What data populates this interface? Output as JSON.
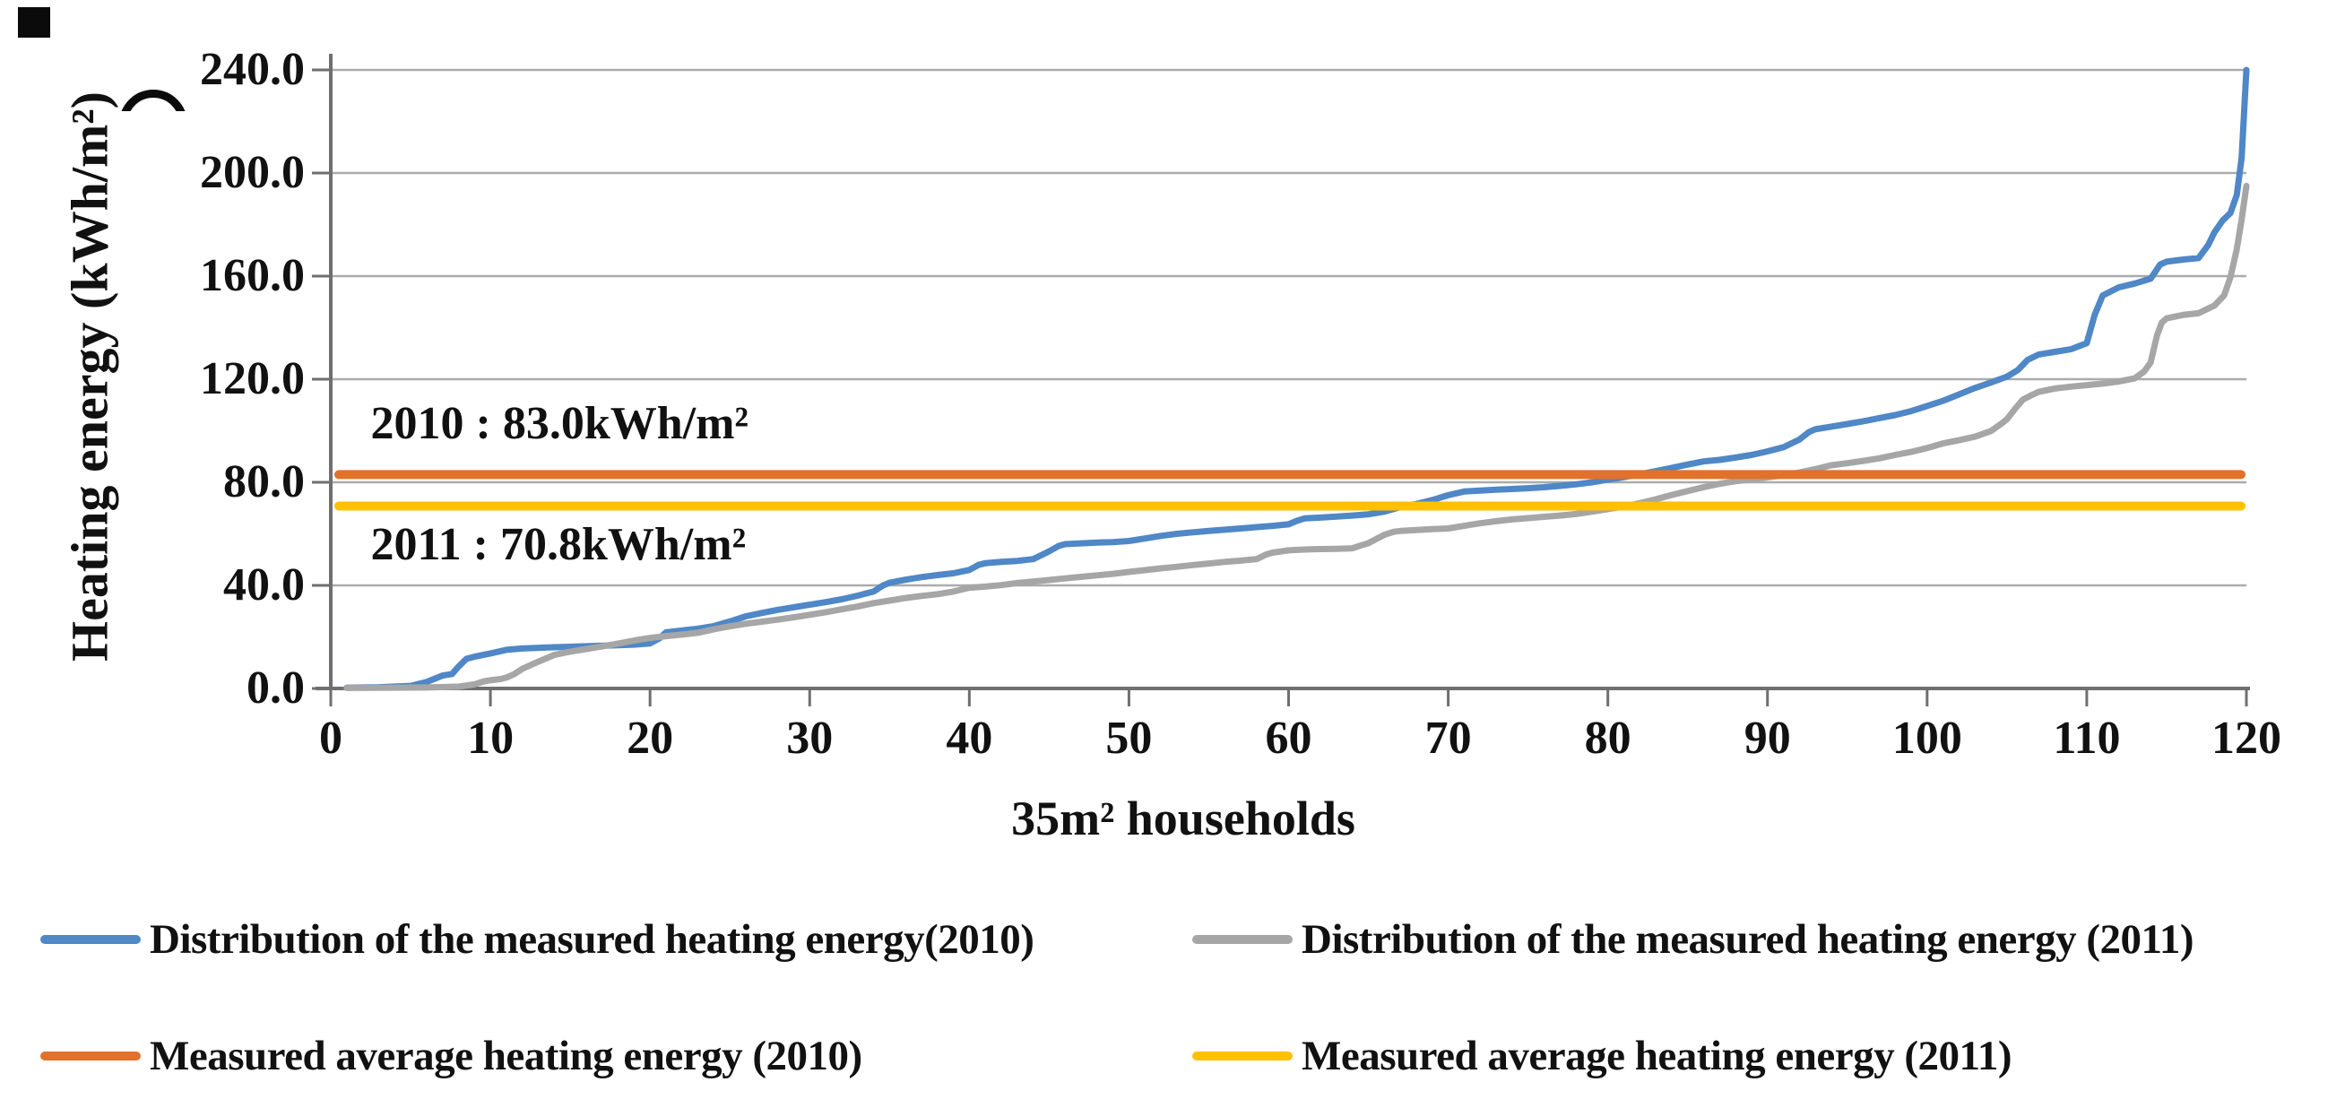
{
  "chart_data": {
    "type": "line",
    "title": "",
    "xlabel": "35m² households",
    "ylabel": "Heating energy (kWh/m²)",
    "xlim": [
      0,
      120
    ],
    "ylim": [
      0,
      240
    ],
    "grid": "horizontal gridlines every 40 units",
    "legend_position": "bottom, two rows",
    "x_ticks": [
      {
        "v": 0,
        "label": "0"
      },
      {
        "v": 10,
        "label": "10"
      },
      {
        "v": 20,
        "label": "20"
      },
      {
        "v": 30,
        "label": "30"
      },
      {
        "v": 40,
        "label": "40"
      },
      {
        "v": 50,
        "label": "50"
      },
      {
        "v": 60,
        "label": "60"
      },
      {
        "v": 70,
        "label": "70"
      },
      {
        "v": 80,
        "label": "80"
      },
      {
        "v": 90,
        "label": "90"
      },
      {
        "v": 100,
        "label": "100"
      },
      {
        "v": 110,
        "label": "110"
      },
      {
        "v": 120,
        "label": "120"
      }
    ],
    "y_ticks": [
      {
        "v": 0,
        "label": "0.0"
      },
      {
        "v": 40,
        "label": "40.0"
      },
      {
        "v": 80,
        "label": "80.0"
      },
      {
        "v": 120,
        "label": "120.0"
      },
      {
        "v": 160,
        "label": "160.0"
      },
      {
        "v": 200,
        "label": "200.0"
      },
      {
        "v": 240,
        "label": "240.0"
      }
    ],
    "annotations": [
      {
        "text": "2010 : 83.0kWh/m²",
        "x": 2.5,
        "y": 103
      },
      {
        "text": "2011 : 70.8kWh/m²",
        "x": 2.5,
        "y": 56
      }
    ],
    "series": [
      {
        "name": "Distribution of the measured heating energy(2010)",
        "color": "#4F87C7",
        "type": "line",
        "points": [
          [
            1,
            0.3
          ],
          [
            3,
            0.5
          ],
          [
            5,
            1
          ],
          [
            6,
            2.5
          ],
          [
            7,
            5
          ],
          [
            7.6,
            5.6
          ],
          [
            8,
            8.5
          ],
          [
            8.5,
            11.5
          ],
          [
            9,
            12.3
          ],
          [
            10,
            13.6
          ],
          [
            11,
            15
          ],
          [
            12,
            15.5
          ],
          [
            14,
            16
          ],
          [
            16,
            16.4
          ],
          [
            18,
            16.8
          ],
          [
            19,
            17
          ],
          [
            20,
            17.5
          ],
          [
            20.6,
            19.5
          ],
          [
            21,
            21.8
          ],
          [
            22,
            22.5
          ],
          [
            23,
            23.2
          ],
          [
            24,
            24.2
          ],
          [
            25,
            26
          ],
          [
            26,
            28
          ],
          [
            27,
            29.3
          ],
          [
            28,
            30.5
          ],
          [
            29,
            31.5
          ],
          [
            30,
            32.5
          ],
          [
            31,
            33.5
          ],
          [
            32,
            34.6
          ],
          [
            33,
            36
          ],
          [
            34,
            37.6
          ],
          [
            34.6,
            40
          ],
          [
            35,
            41
          ],
          [
            36,
            42.2
          ],
          [
            37,
            43.2
          ],
          [
            38,
            44
          ],
          [
            39,
            44.7
          ],
          [
            40,
            46
          ],
          [
            40.6,
            48
          ],
          [
            41,
            48.6
          ],
          [
            42,
            49.1
          ],
          [
            43,
            49.5
          ],
          [
            44,
            50.2
          ],
          [
            44.6,
            52
          ],
          [
            45,
            53.2
          ],
          [
            45.6,
            55.3
          ],
          [
            46,
            56
          ],
          [
            47,
            56.3
          ],
          [
            48,
            56.6
          ],
          [
            49,
            56.8
          ],
          [
            50,
            57.2
          ],
          [
            51,
            58.2
          ],
          [
            52,
            59.2
          ],
          [
            53,
            60
          ],
          [
            54,
            60.6
          ],
          [
            55,
            61.1
          ],
          [
            56,
            61.6
          ],
          [
            57,
            62.1
          ],
          [
            58,
            62.6
          ],
          [
            59,
            63.1
          ],
          [
            60,
            63.7
          ],
          [
            60.5,
            65
          ],
          [
            61,
            66
          ],
          [
            62,
            66.3
          ],
          [
            63,
            66.7
          ],
          [
            64,
            67.1
          ],
          [
            65,
            67.6
          ],
          [
            66,
            68.6
          ],
          [
            67,
            70.4
          ],
          [
            68,
            71.6
          ],
          [
            69,
            73.1
          ],
          [
            70,
            75
          ],
          [
            71,
            76.4
          ],
          [
            72,
            76.8
          ],
          [
            73,
            77.1
          ],
          [
            74,
            77.4
          ],
          [
            75,
            77.7
          ],
          [
            76,
            78.1
          ],
          [
            77,
            78.6
          ],
          [
            78,
            79.2
          ],
          [
            79,
            80
          ],
          [
            80,
            81
          ],
          [
            81,
            82
          ],
          [
            82,
            83.1
          ],
          [
            83,
            84.3
          ],
          [
            84,
            85.6
          ],
          [
            85,
            86.9
          ],
          [
            86,
            88.1
          ],
          [
            87,
            88.7
          ],
          [
            88,
            89.6
          ],
          [
            89,
            90.6
          ],
          [
            90,
            92
          ],
          [
            91,
            93.6
          ],
          [
            92,
            96.6
          ],
          [
            92.6,
            99.5
          ],
          [
            93,
            100.6
          ],
          [
            94,
            101.6
          ],
          [
            95,
            102.6
          ],
          [
            96,
            103.7
          ],
          [
            97,
            104.9
          ],
          [
            98,
            106.1
          ],
          [
            99,
            107.6
          ],
          [
            100,
            109.6
          ],
          [
            101,
            111.6
          ],
          [
            102,
            114.1
          ],
          [
            103,
            116.6
          ],
          [
            104,
            118.7
          ],
          [
            105,
            121
          ],
          [
            105.7,
            123.6
          ],
          [
            106.3,
            127.5
          ],
          [
            107,
            129.6
          ],
          [
            108,
            130.6
          ],
          [
            109,
            131.6
          ],
          [
            110,
            134
          ],
          [
            110.5,
            145
          ],
          [
            111,
            152.5
          ],
          [
            112,
            155.6
          ],
          [
            113,
            157.1
          ],
          [
            114,
            159
          ],
          [
            114.6,
            164.5
          ],
          [
            115,
            165.6
          ],
          [
            116,
            166.4
          ],
          [
            117,
            167
          ],
          [
            117.6,
            172
          ],
          [
            118,
            177
          ],
          [
            118.5,
            181.5
          ],
          [
            119,
            184.5
          ],
          [
            119.4,
            191.5
          ],
          [
            119.7,
            206
          ],
          [
            120,
            240
          ]
        ]
      },
      {
        "name": "Distribution of the measured heating energy (2011)",
        "color": "#A6A6A6",
        "type": "line",
        "points": [
          [
            1,
            0.2
          ],
          [
            4,
            0.3
          ],
          [
            6,
            0.4
          ],
          [
            8,
            0.7
          ],
          [
            9,
            1.6
          ],
          [
            9.6,
            2.8
          ],
          [
            10,
            3.2
          ],
          [
            10.6,
            3.6
          ],
          [
            11,
            4.2
          ],
          [
            11.5,
            5.6
          ],
          [
            12,
            7.6
          ],
          [
            13,
            10.4
          ],
          [
            14,
            13
          ],
          [
            15,
            14.3
          ],
          [
            16,
            15.3
          ],
          [
            17,
            16.3
          ],
          [
            18,
            17.4
          ],
          [
            19,
            18.6
          ],
          [
            20,
            19.6
          ],
          [
            21,
            20.3
          ],
          [
            22,
            20.9
          ],
          [
            23,
            21.6
          ],
          [
            24,
            23
          ],
          [
            25,
            24.1
          ],
          [
            26,
            25.1
          ],
          [
            27,
            25.9
          ],
          [
            28,
            26.7
          ],
          [
            29,
            27.6
          ],
          [
            30,
            28.6
          ],
          [
            31,
            29.6
          ],
          [
            32,
            30.7
          ],
          [
            33,
            31.8
          ],
          [
            34,
            33.1
          ],
          [
            35,
            34.1
          ],
          [
            36,
            35.1
          ],
          [
            37,
            35.9
          ],
          [
            38,
            36.6
          ],
          [
            39,
            37.6
          ],
          [
            40,
            39.1
          ],
          [
            41,
            39.5
          ],
          [
            42,
            40.1
          ],
          [
            43,
            40.9
          ],
          [
            44,
            41.5
          ],
          [
            45,
            42.1
          ],
          [
            46,
            42.7
          ],
          [
            47,
            43.3
          ],
          [
            48,
            43.9
          ],
          [
            49,
            44.5
          ],
          [
            50,
            45.2
          ],
          [
            51,
            45.9
          ],
          [
            52,
            46.6
          ],
          [
            53,
            47.2
          ],
          [
            54,
            47.9
          ],
          [
            55,
            48.5
          ],
          [
            56,
            49.1
          ],
          [
            57,
            49.6
          ],
          [
            58,
            50.2
          ],
          [
            58.6,
            52
          ],
          [
            59,
            52.7
          ],
          [
            60,
            53.6
          ],
          [
            61,
            53.9
          ],
          [
            62,
            54.1
          ],
          [
            63,
            54.2
          ],
          [
            64,
            54.4
          ],
          [
            64.6,
            55.6
          ],
          [
            65,
            56.4
          ],
          [
            66,
            59.6
          ],
          [
            66.6,
            60.8
          ],
          [
            67,
            61.1
          ],
          [
            68,
            61.5
          ],
          [
            69,
            61.8
          ],
          [
            70,
            62.1
          ],
          [
            71,
            63.1
          ],
          [
            72,
            64.1
          ],
          [
            73,
            64.9
          ],
          [
            74,
            65.6
          ],
          [
            75,
            66.1
          ],
          [
            76,
            66.6
          ],
          [
            77,
            67.1
          ],
          [
            78,
            67.7
          ],
          [
            79,
            68.6
          ],
          [
            80,
            69.6
          ],
          [
            81,
            70.6
          ],
          [
            82,
            71.9
          ],
          [
            83,
            73.4
          ],
          [
            84,
            75.1
          ],
          [
            85,
            76.6
          ],
          [
            86,
            78.1
          ],
          [
            87,
            79.4
          ],
          [
            88,
            80.4
          ],
          [
            89,
            81.1
          ],
          [
            90,
            81.9
          ],
          [
            91,
            82.8
          ],
          [
            92,
            83.8
          ],
          [
            93,
            85.1
          ],
          [
            94,
            86.6
          ],
          [
            95,
            87.4
          ],
          [
            96,
            88.3
          ],
          [
            97,
            89.3
          ],
          [
            98,
            90.6
          ],
          [
            99,
            91.8
          ],
          [
            100,
            93.3
          ],
          [
            101,
            95.1
          ],
          [
            102,
            96.3
          ],
          [
            103,
            97.7
          ],
          [
            104,
            99.9
          ],
          [
            104.6,
            102.5
          ],
          [
            105,
            104.5
          ],
          [
            105.5,
            108.5
          ],
          [
            106,
            112.1
          ],
          [
            106.6,
            114
          ],
          [
            107,
            115.1
          ],
          [
            108,
            116.4
          ],
          [
            109,
            117.1
          ],
          [
            110,
            117.7
          ],
          [
            111,
            118.3
          ],
          [
            112,
            119.1
          ],
          [
            113,
            120.3
          ],
          [
            113.6,
            123
          ],
          [
            114,
            126.5
          ],
          [
            114.4,
            137
          ],
          [
            114.7,
            142
          ],
          [
            115,
            143.6
          ],
          [
            116,
            144.9
          ],
          [
            117,
            145.6
          ],
          [
            118,
            148.6
          ],
          [
            118.6,
            152.5
          ],
          [
            119,
            159.5
          ],
          [
            119.4,
            170.5
          ],
          [
            119.7,
            182
          ],
          [
            120,
            195
          ]
        ]
      },
      {
        "name": "Measured average heating energy (2010)",
        "color": "#E2712B",
        "type": "hline",
        "value": 83.0
      },
      {
        "name": "Measured average heating energy (2011)",
        "color": "#FFC000",
        "type": "hline",
        "value": 70.8
      }
    ]
  },
  "legend": {
    "row1_left_label": "Distribution of the measured heating energy(2010)",
    "row1_right_label": "Distribution of the measured heating energy (2011)",
    "row2_left_label": "Measured average heating energy (2010)",
    "row2_right_label": "Measured average heating energy (2011)"
  }
}
